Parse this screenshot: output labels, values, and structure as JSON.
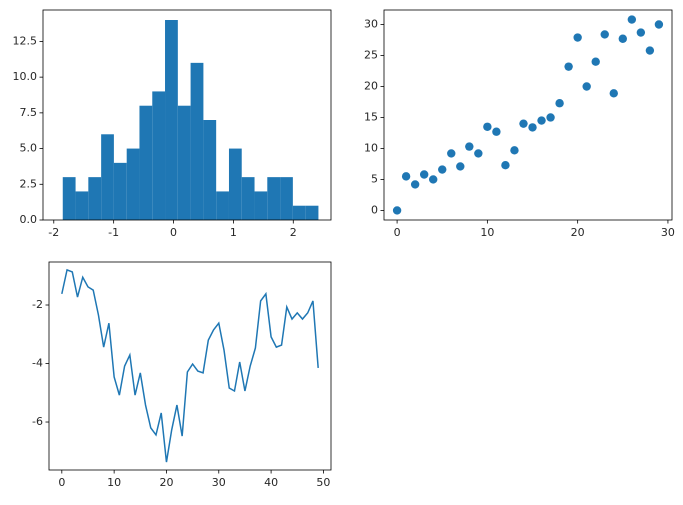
{
  "chart_data": [
    {
      "type": "histogram",
      "color": "#1f77b4",
      "bins": [
        -1.85,
        -1.636,
        -1.423,
        -1.209,
        -0.996,
        -0.782,
        -0.569,
        -0.355,
        -0.142,
        0.072,
        0.285,
        0.499,
        0.712,
        0.926,
        1.139,
        1.353,
        1.566,
        1.78,
        1.993,
        2.207,
        2.42
      ],
      "values": [
        3,
        2,
        3,
        6,
        4,
        5,
        8,
        9,
        14,
        8,
        11,
        7,
        2,
        5,
        3,
        2,
        3,
        3,
        1,
        1
      ],
      "xlim": [
        -2.18,
        2.63
      ],
      "xticks": [
        -2,
        -1,
        0,
        1,
        2
      ],
      "ylim": [
        0,
        14.7
      ],
      "yticks": [
        {
          "value": 0,
          "label": "0.0"
        },
        2.5,
        {
          "value": 5,
          "label": "5.0"
        },
        7.5,
        {
          "value": 10,
          "label": "10.0"
        },
        12.5
      ]
    },
    {
      "type": "scatter",
      "color": "#1f77b4",
      "x": [
        0,
        1,
        2,
        3,
        4,
        5,
        6,
        7,
        8,
        9,
        10,
        11,
        12,
        13,
        14,
        15,
        16,
        17,
        18,
        19,
        20,
        21,
        22,
        23,
        24,
        25,
        26,
        27,
        28,
        29
      ],
      "values": [
        0,
        5.5,
        4.2,
        5.8,
        5.0,
        6.6,
        9.2,
        7.1,
        10.3,
        9.2,
        13.5,
        12.7,
        7.3,
        9.7,
        14.0,
        13.4,
        14.5,
        15.0,
        17.3,
        23.2,
        27.9,
        20.0,
        24.0,
        28.4,
        18.9,
        27.7,
        30.8,
        28.7,
        25.8,
        30.0
      ],
      "xlim": [
        -1.45,
        30.45
      ],
      "xticks": [
        0,
        10,
        20,
        30
      ],
      "ylim": [
        -1.54,
        32.34
      ],
      "yticks": [
        0,
        5,
        10,
        15,
        20,
        25,
        30
      ]
    },
    {
      "type": "line",
      "color": "#1f77b4",
      "x": [
        0,
        1,
        2,
        3,
        4,
        5,
        6,
        7,
        8,
        9,
        10,
        11,
        12,
        13,
        14,
        15,
        16,
        17,
        18,
        19,
        20,
        21,
        22,
        23,
        24,
        25,
        26,
        27,
        28,
        29,
        30,
        31,
        32,
        33,
        34,
        35,
        36,
        37,
        38,
        39,
        40,
        41,
        42,
        43,
        44,
        45,
        46,
        47,
        48,
        49
      ],
      "values": [
        -1.62,
        -0.8,
        -0.87,
        -1.73,
        -1.05,
        -1.38,
        -1.49,
        -2.34,
        -3.44,
        -2.62,
        -4.46,
        -5.08,
        -4.09,
        -3.71,
        -5.08,
        -4.32,
        -5.42,
        -6.2,
        -6.44,
        -5.69,
        -7.37,
        -6.27,
        -5.42,
        -6.48,
        -4.29,
        -4.02,
        -4.26,
        -4.32,
        -3.2,
        -2.85,
        -2.62,
        -3.54,
        -4.84,
        -4.94,
        -3.95,
        -4.94,
        -4.09,
        -3.47,
        -1.86,
        -1.62,
        -3.09,
        -3.44,
        -3.37,
        -2.07,
        -2.48,
        -2.27,
        -2.48,
        -2.27,
        -1.86,
        -4.15
      ],
      "xlim": [
        -2.45,
        51.45
      ],
      "xticks": [
        0,
        10,
        20,
        30,
        40,
        50
      ],
      "ylim": [
        -7.64,
        -0.53
      ],
      "yticks": [
        -6,
        -4,
        -2
      ]
    }
  ]
}
